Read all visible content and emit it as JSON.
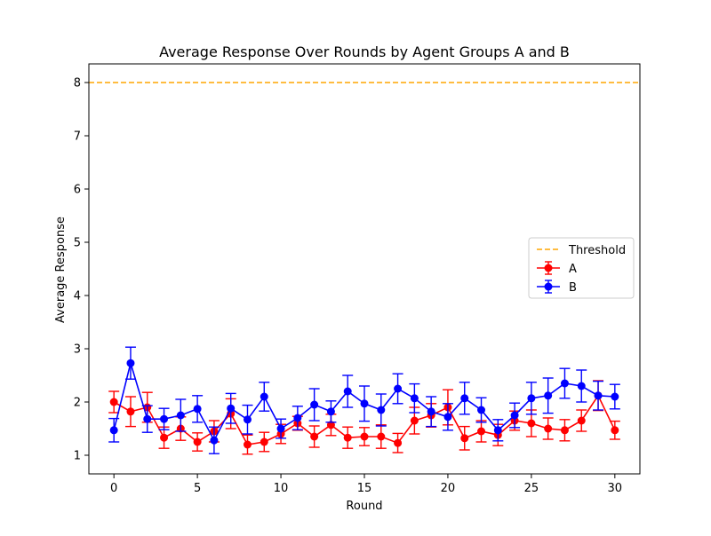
{
  "chart_data": {
    "type": "line",
    "title": "Average Response Over Rounds by Agent Groups A and B",
    "xlabel": "Round",
    "ylabel": "Average Response",
    "xlim": [
      -1.5,
      31.5
    ],
    "ylim": [
      0.65,
      8.35
    ],
    "xticks": [
      0,
      5,
      10,
      15,
      20,
      25,
      30
    ],
    "yticks": [
      1,
      2,
      3,
      4,
      5,
      6,
      7,
      8
    ],
    "grid": false,
    "legend": "center-right",
    "x": [
      0,
      1,
      2,
      3,
      4,
      5,
      6,
      7,
      8,
      9,
      10,
      11,
      12,
      13,
      14,
      15,
      16,
      17,
      18,
      19,
      20,
      21,
      22,
      23,
      24,
      25,
      26,
      27,
      28,
      29,
      30
    ],
    "threshold": {
      "name": "Threshold",
      "value": 8,
      "color": "#ffa500",
      "style": "dashed"
    },
    "series": [
      {
        "name": "A",
        "color": "#ff0000",
        "values": [
          2.0,
          1.82,
          1.9,
          1.33,
          1.5,
          1.25,
          1.45,
          1.78,
          1.2,
          1.25,
          1.4,
          1.6,
          1.35,
          1.57,
          1.33,
          1.35,
          1.35,
          1.23,
          1.65,
          1.75,
          1.9,
          1.32,
          1.45,
          1.38,
          1.65,
          1.6,
          1.5,
          1.47,
          1.65,
          2.12,
          1.47
        ],
        "errors": [
          0.2,
          0.28,
          0.28,
          0.2,
          0.22,
          0.17,
          0.2,
          0.28,
          0.18,
          0.18,
          0.18,
          0.13,
          0.2,
          0.2,
          0.2,
          0.17,
          0.22,
          0.18,
          0.25,
          0.22,
          0.33,
          0.22,
          0.2,
          0.2,
          0.18,
          0.25,
          0.2,
          0.2,
          0.2,
          0.28,
          0.17
        ]
      },
      {
        "name": "B",
        "color": "#0000ff",
        "values": [
          1.47,
          2.73,
          1.68,
          1.68,
          1.75,
          1.87,
          1.28,
          1.88,
          1.67,
          2.1,
          1.5,
          1.7,
          1.95,
          1.82,
          2.2,
          1.97,
          1.85,
          2.25,
          2.07,
          1.82,
          1.72,
          2.07,
          1.85,
          1.47,
          1.75,
          2.07,
          2.12,
          2.35,
          2.3,
          2.12,
          2.1
        ],
        "errors": [
          0.22,
          0.3,
          0.25,
          0.2,
          0.3,
          0.25,
          0.25,
          0.28,
          0.27,
          0.27,
          0.18,
          0.22,
          0.3,
          0.2,
          0.3,
          0.33,
          0.3,
          0.28,
          0.27,
          0.28,
          0.25,
          0.3,
          0.23,
          0.2,
          0.23,
          0.3,
          0.33,
          0.28,
          0.3,
          0.27,
          0.23
        ]
      }
    ]
  }
}
